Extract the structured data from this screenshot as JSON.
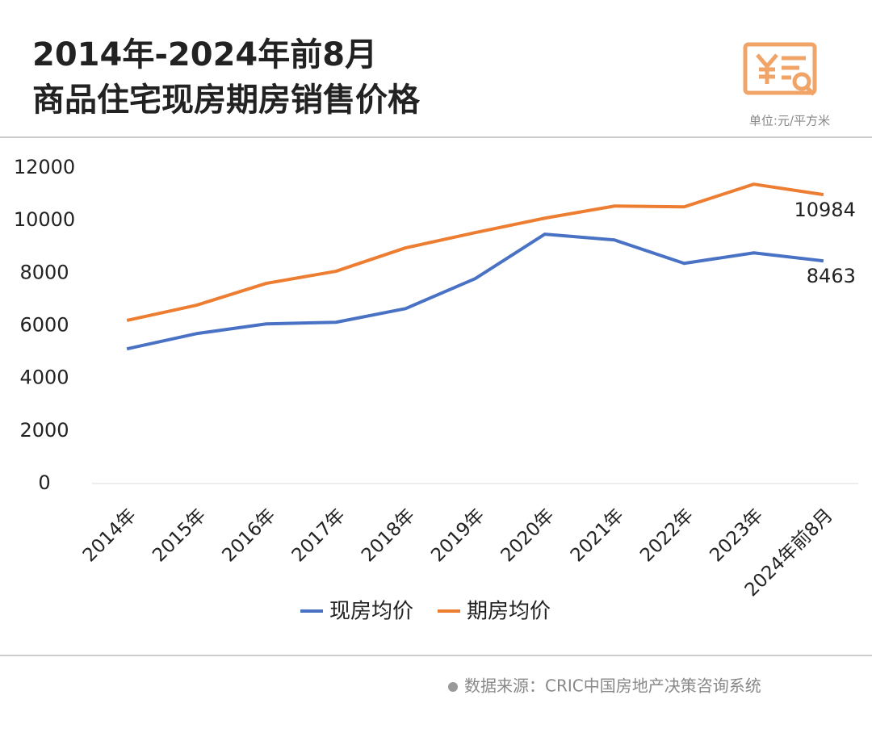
{
  "chart_data": {
    "type": "line",
    "title": [
      "2014年-2024年前8月",
      "商品住宅现房期房销售价格"
    ],
    "unit": "单位:元/平方米",
    "source": "数据来源：CRIC中国房地产决策咨询系统",
    "categories": [
      "2014年",
      "2015年",
      "2016年",
      "2017年",
      "2018年",
      "2019年",
      "2020年",
      "2021年",
      "2022年",
      "2023年",
      "2024年前8月"
    ],
    "series": [
      {
        "name": "现房均价",
        "color": "#4a72c4",
        "values": [
          5120,
          5700,
          6070,
          6130,
          6650,
          7790,
          9480,
          9260,
          8370,
          8770,
          8463
        ]
      },
      {
        "name": "期房均价",
        "color": "#ed7d31",
        "values": [
          6200,
          6780,
          7610,
          8070,
          8960,
          9540,
          10090,
          10550,
          10520,
          11380,
          10984
        ]
      }
    ],
    "ylim": [
      0,
      12000
    ],
    "yticks": [
      0,
      2000,
      4000,
      6000,
      8000,
      10000,
      12000
    ],
    "grid": false,
    "legend": "bottom"
  }
}
